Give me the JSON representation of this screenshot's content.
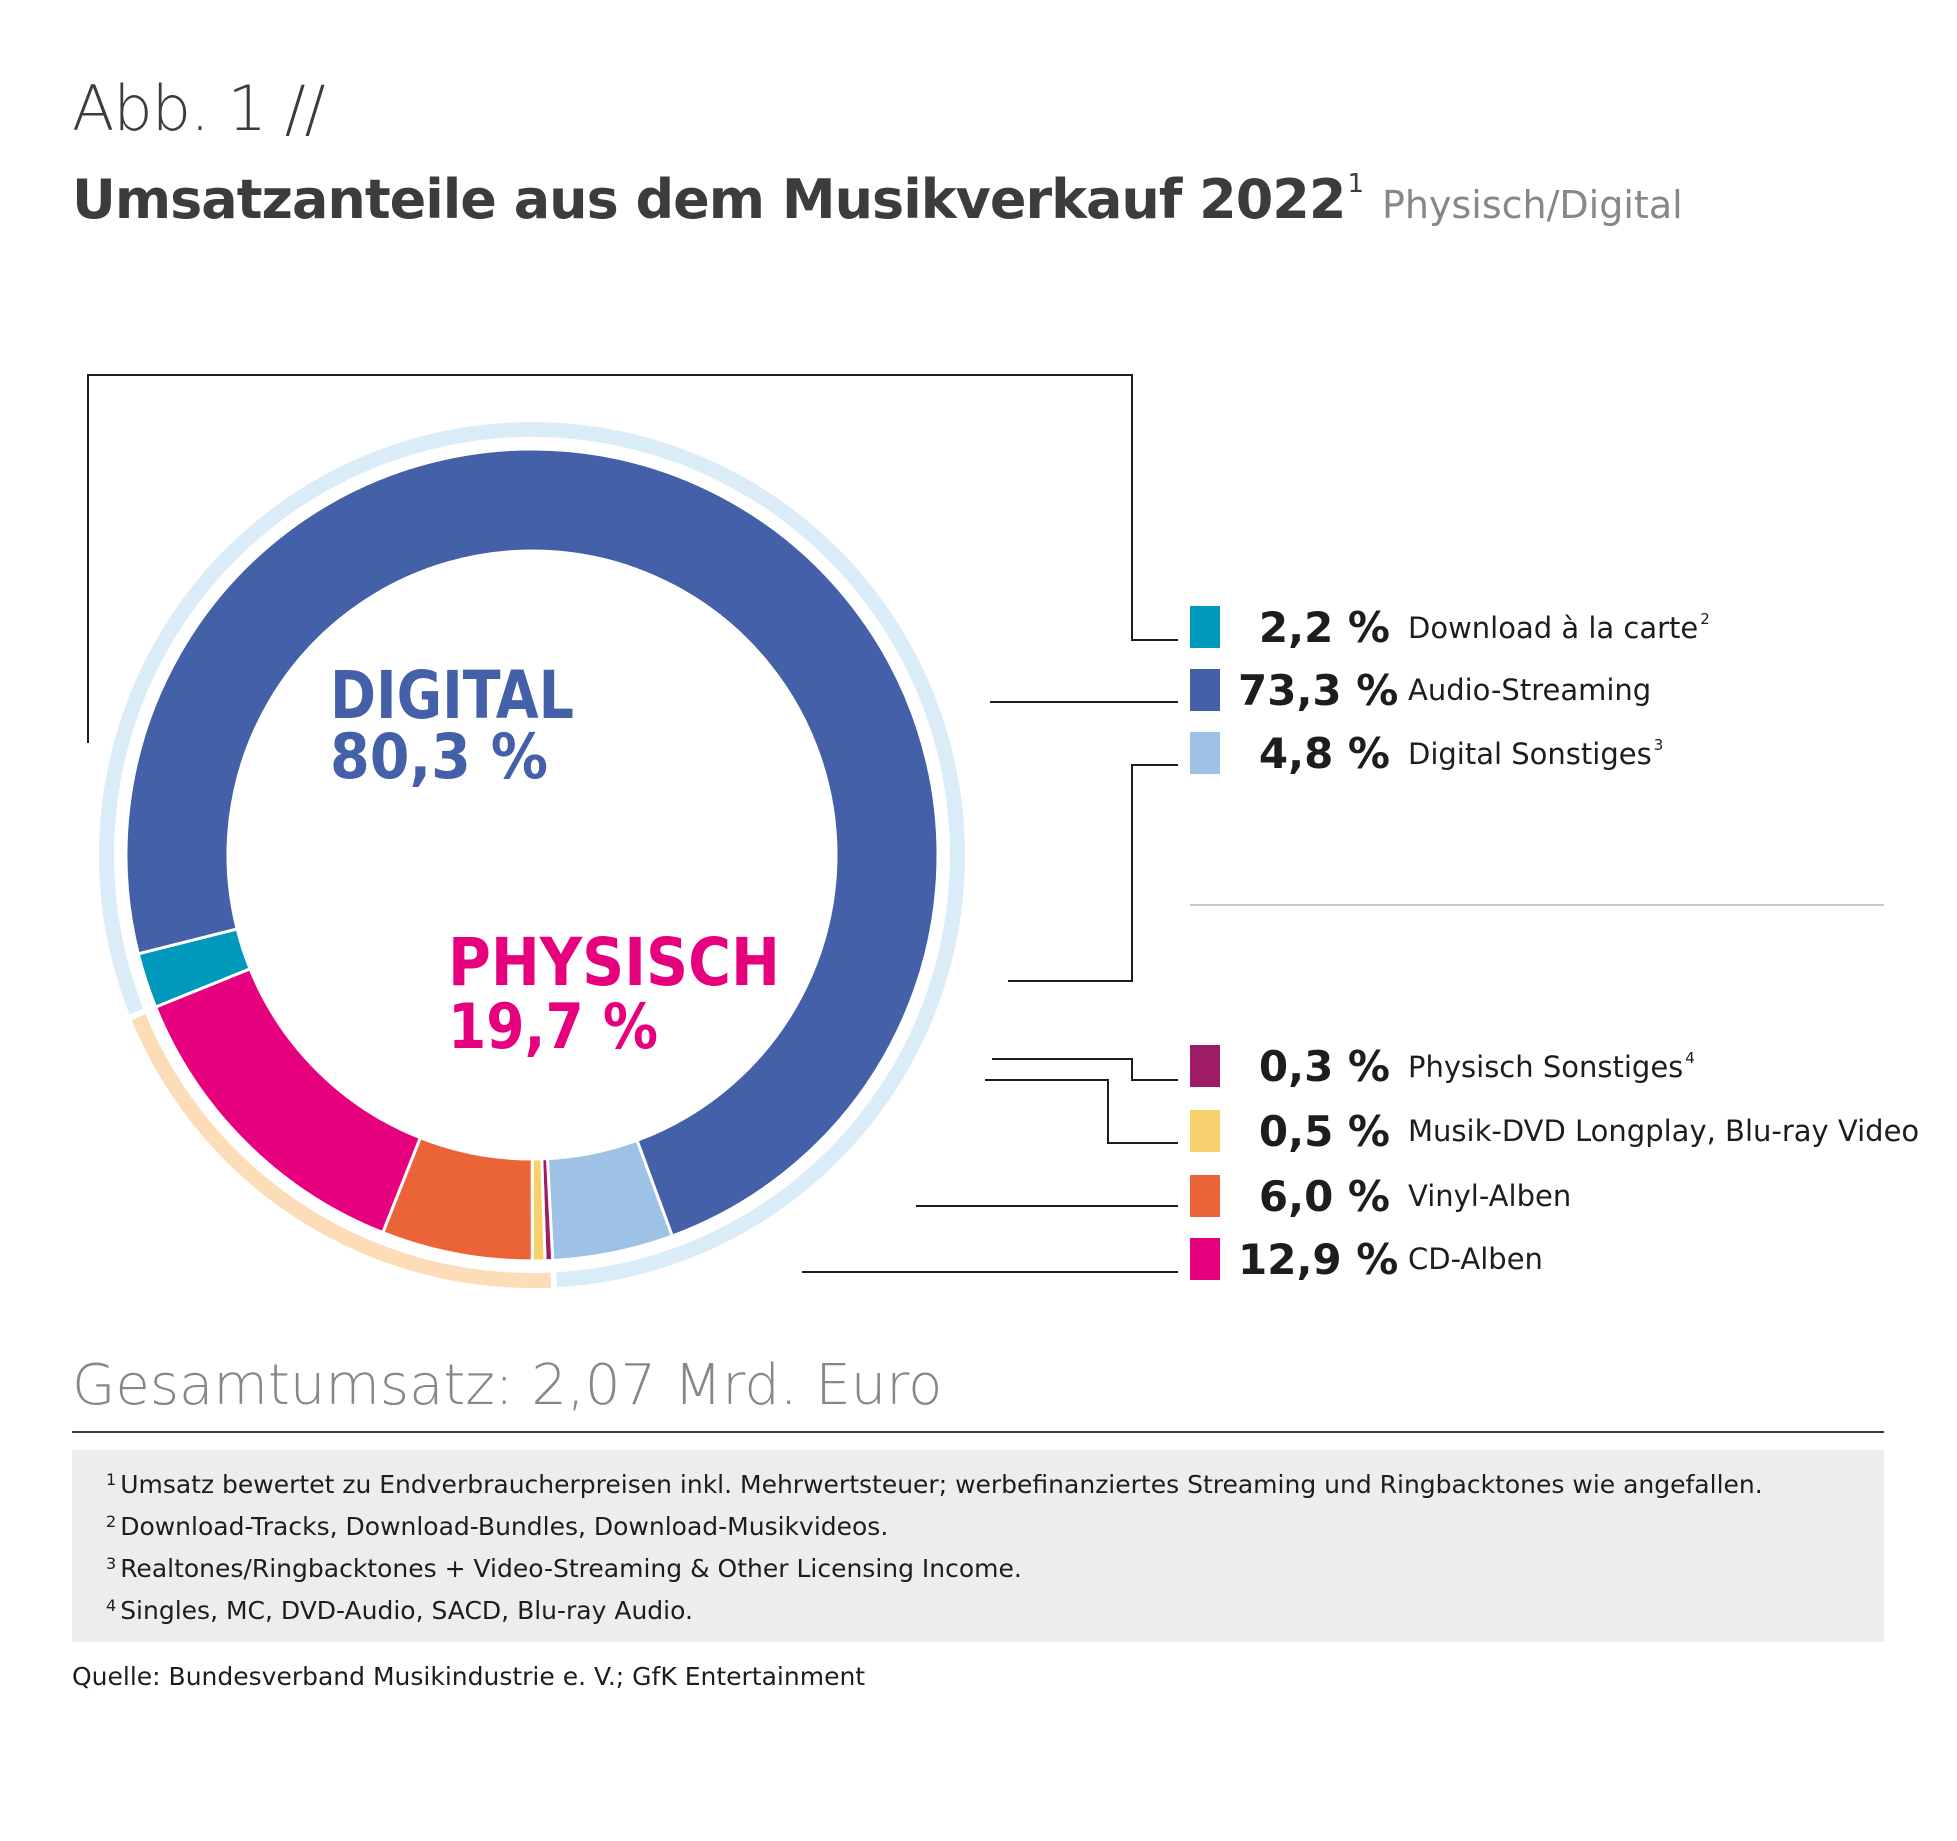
{
  "figure_label": "Abb. 1 //",
  "title": "Umsatzanteile aus dem Musikverkauf 2022",
  "title_footnote": "1",
  "subtitle": "Physisch/Digital",
  "colors": {
    "digital_ring": "#dbecf9",
    "physical_ring": "#fddcb8",
    "digital_text": "#4360a8",
    "physical_text": "#e6007e",
    "leader_line": "#1d1d1b"
  },
  "chart_data": {
    "type": "pie",
    "style": "donut",
    "start_angle_deg": 248,
    "direction": "clockwise",
    "groups": [
      {
        "name": "DIGITAL",
        "value_label": "80,3 %",
        "value": 80.3
      },
      {
        "name": "PHYSISCH",
        "value_label": "19,7 %",
        "value": 19.7
      }
    ],
    "slices": [
      {
        "group": "DIGITAL",
        "value": 2.2,
        "value_label": "2,2 %",
        "label": "Download à la carte",
        "footnote": "2",
        "color": "#0099bb"
      },
      {
        "group": "DIGITAL",
        "value": 73.3,
        "value_label": "73,3 %",
        "label": "Audio-Streaming",
        "footnote": "",
        "color": "#4360a8"
      },
      {
        "group": "DIGITAL",
        "value": 4.8,
        "value_label": "4,8 %",
        "label": "Digital Sonstiges",
        "footnote": "3",
        "color": "#9dc2e5"
      },
      {
        "group": "PHYSISCH",
        "value": 0.3,
        "value_label": "0,3 %",
        "label": "Physisch Sonstiges",
        "footnote": "4",
        "color": "#9e1c66"
      },
      {
        "group": "PHYSISCH",
        "value": 0.5,
        "value_label": "0,5 %",
        "label": "Musik-DVD Longplay, Blu-ray Video",
        "footnote": "",
        "color": "#f5d06c"
      },
      {
        "group": "PHYSISCH",
        "value": 6.0,
        "value_label": "6,0 %",
        "label": "Vinyl-Alben",
        "footnote": "",
        "color": "#eb6437"
      },
      {
        "group": "PHYSISCH",
        "value": 12.9,
        "value_label": "12,9 %",
        "label": "CD-Alben",
        "footnote": "",
        "color": "#e6007e"
      }
    ]
  },
  "total": "Gesamtumsatz: 2,07 Mrd. Euro",
  "footnotes": [
    {
      "num": "1",
      "text": "Umsatz bewertet zu Endverbraucherpreisen inkl. Mehrwertsteuer; werbefinanziertes Streaming und Ringbacktones wie angefallen."
    },
    {
      "num": "2",
      "text": "Download-Tracks, Download-Bundles, Download-Musikvideos."
    },
    {
      "num": "3",
      "text": "Realtones/Ringbacktones + Video-Streaming & Other Licensing Income."
    },
    {
      "num": "4",
      "text": "Singles, MC, DVD-Audio, SACD, Blu-ray Audio."
    }
  ],
  "source": "Quelle: Bundesverband Musikindustrie e. V.; GfK Entertainment"
}
